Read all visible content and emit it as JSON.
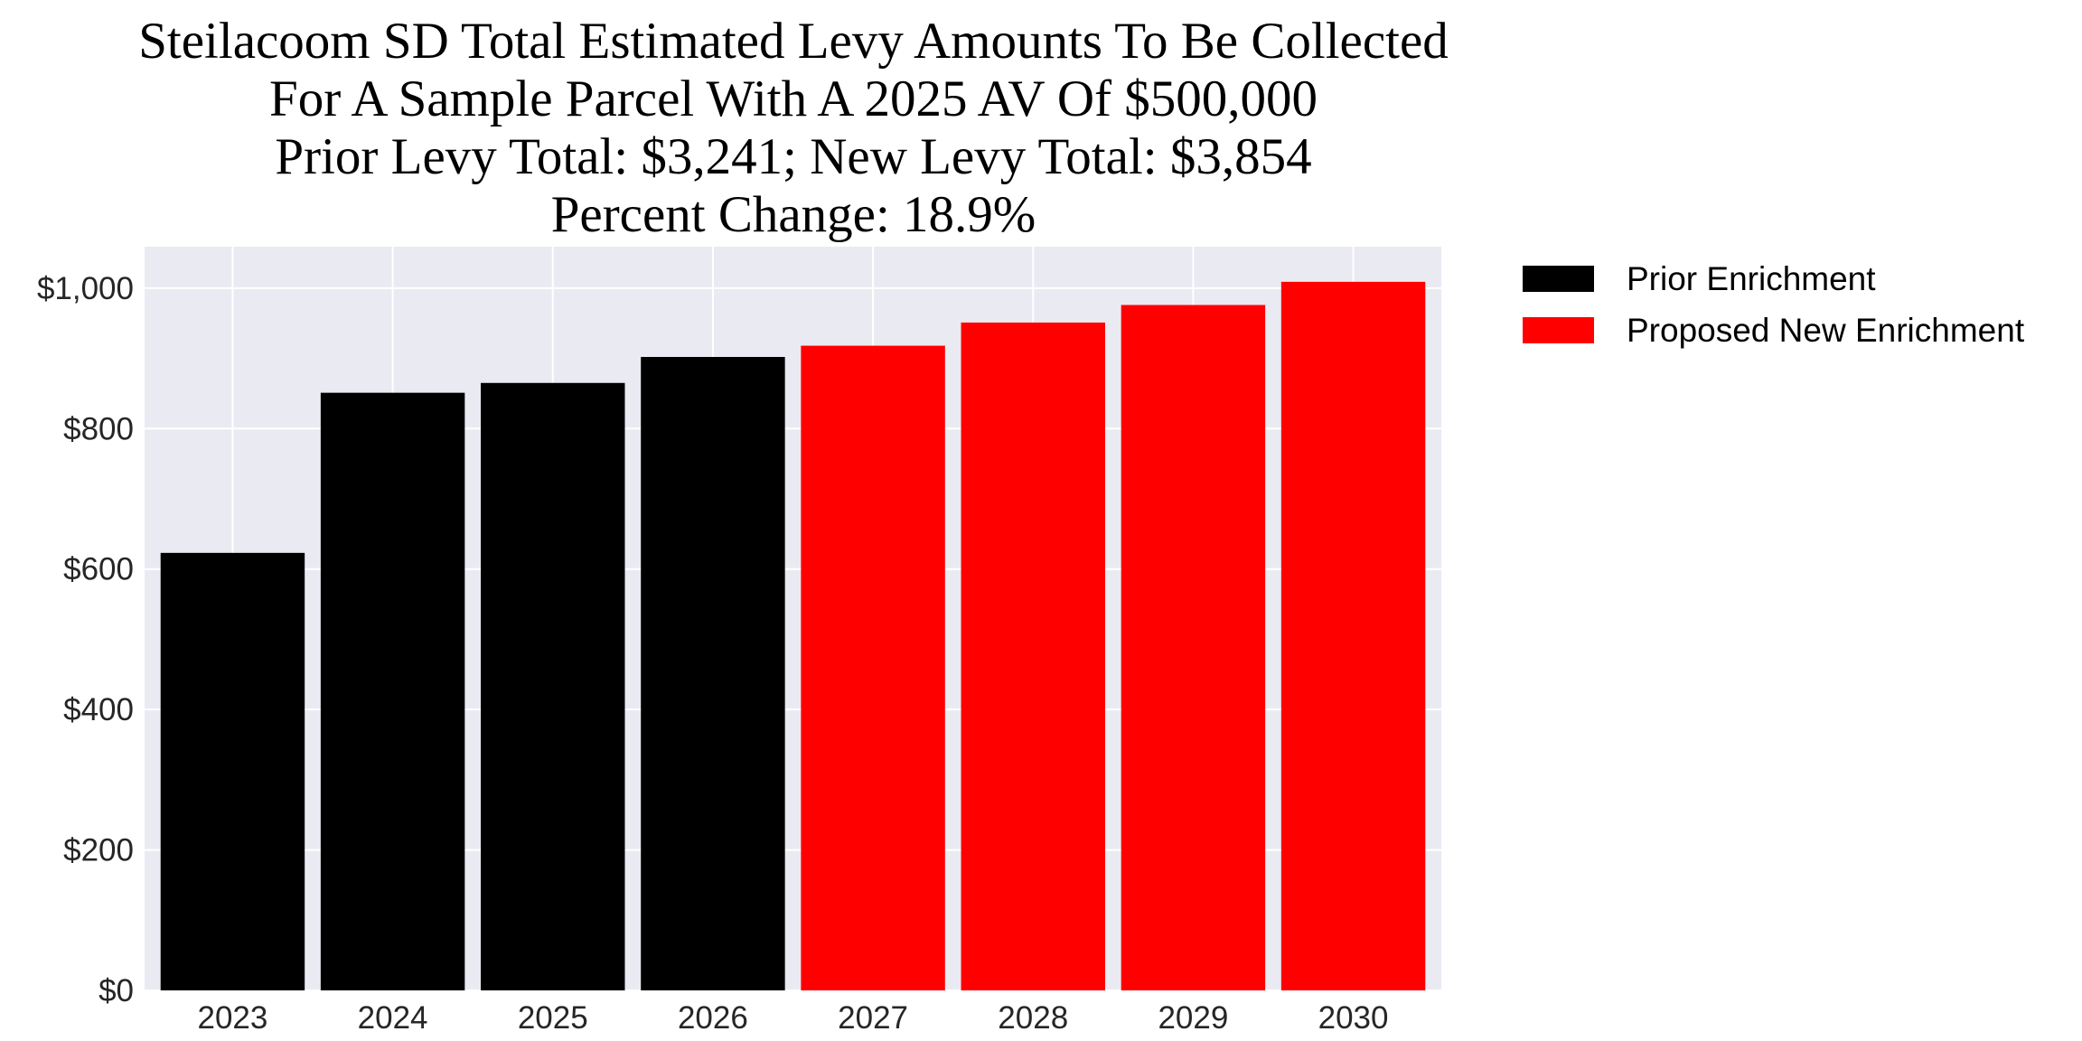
{
  "chart_data": {
    "type": "bar",
    "title_lines": [
      "Steilacoom SD Total Estimated Levy Amounts To Be Collected",
      "For A Sample Parcel With A 2025 AV Of $500,000",
      "Prior Levy Total:  $3,241; New Levy Total: $3,854",
      "Percent Change: 18.9%"
    ],
    "categories": [
      "2023",
      "2024",
      "2025",
      "2026",
      "2027",
      "2028",
      "2029",
      "2030"
    ],
    "values": [
      623,
      851,
      865,
      902,
      918,
      951,
      976,
      1009
    ],
    "bar_series": [
      "Prior Enrichment",
      "Prior Enrichment",
      "Prior Enrichment",
      "Prior Enrichment",
      "Proposed New Enrichment",
      "Proposed New Enrichment",
      "Proposed New Enrichment",
      "Proposed New Enrichment"
    ],
    "series": [
      {
        "name": "Prior Enrichment",
        "color": "#000000"
      },
      {
        "name": "Proposed New Enrichment",
        "color": "#ff0000"
      }
    ],
    "yticks": [
      0,
      200,
      400,
      600,
      800,
      1000
    ],
    "ytick_labels": [
      "$0",
      "$200",
      "$400",
      "$600",
      "$800",
      "$1,000"
    ],
    "ylim": [
      0,
      1059
    ],
    "xlabel": "",
    "ylabel": "",
    "grid": true,
    "background": "#eaeaf2",
    "legend_placement": "outside-top-right"
  }
}
